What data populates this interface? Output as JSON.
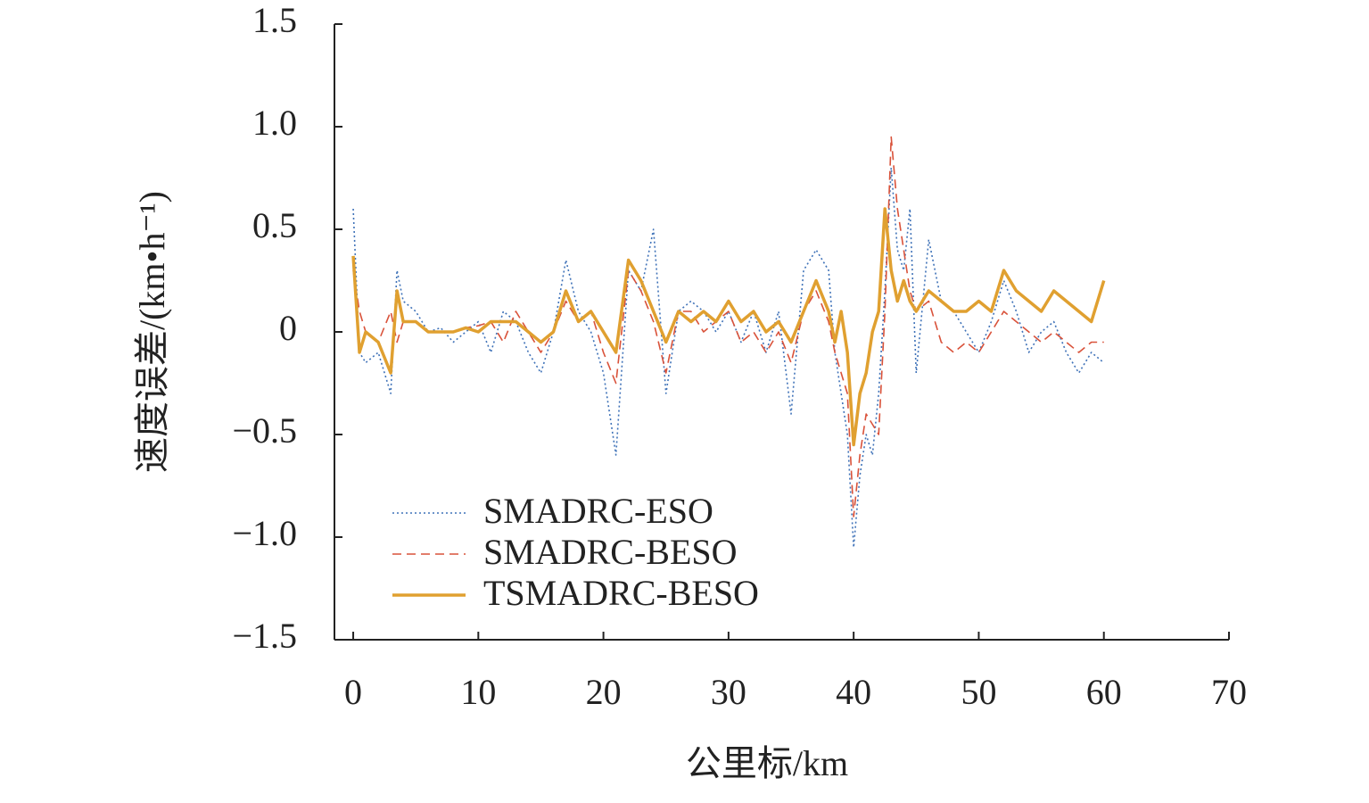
{
  "chart_data": {
    "type": "line",
    "xlabel": "公里标/km",
    "ylabel": "速度误差/(km•h⁻¹)",
    "x": [
      0,
      0.5,
      1,
      2,
      3,
      3.5,
      4,
      5,
      6,
      7,
      8,
      9,
      10,
      11,
      12,
      13,
      14,
      15,
      16,
      17,
      18,
      19,
      20,
      21,
      22,
      23,
      24,
      25,
      26,
      27,
      28,
      29,
      30,
      31,
      32,
      33,
      34,
      35,
      36,
      37,
      38,
      38.5,
      39,
      39.5,
      40,
      40.5,
      41,
      41.5,
      42,
      42.5,
      43,
      43.5,
      44,
      44.5,
      45,
      46,
      47,
      48,
      49,
      50,
      51,
      52,
      53,
      54,
      55,
      56,
      57,
      58,
      59,
      60
    ],
    "series": [
      {
        "name": "SMADRC-ESO",
        "color": "#3f72b8",
        "style": "dotted",
        "values": [
          0.6,
          -0.1,
          -0.15,
          -0.1,
          -0.3,
          0.3,
          0.15,
          0.1,
          0,
          0.02,
          -0.05,
          0,
          0.05,
          -0.1,
          0.1,
          0.05,
          -0.1,
          -0.2,
          0,
          0.35,
          0.1,
          0,
          -0.2,
          -0.6,
          0.3,
          0.2,
          0.5,
          -0.3,
          0.1,
          0.15,
          0.1,
          0,
          0.1,
          -0.05,
          0.1,
          -0.1,
          0.1,
          -0.4,
          0.3,
          0.4,
          0.3,
          -0.1,
          -0.3,
          -0.5,
          -1.05,
          -0.7,
          -0.5,
          -0.6,
          -0.3,
          0.2,
          0.8,
          0.4,
          0.3,
          0.6,
          -0.2,
          0.45,
          0.15,
          0.1,
          0,
          -0.1,
          0.05,
          0.25,
          0.1,
          -0.1,
          0,
          0.05,
          -0.1,
          -0.2,
          -0.1,
          -0.15
        ]
      },
      {
        "name": "SMADRC-BESO",
        "color": "#d9523a",
        "style": "dashed",
        "values": [
          0.3,
          0.1,
          0,
          -0.05,
          0.1,
          -0.05,
          0.05,
          0.05,
          0,
          0,
          0,
          0.02,
          0.03,
          0.05,
          -0.05,
          0.1,
          0,
          -0.1,
          0,
          0.15,
          0.05,
          0.1,
          -0.1,
          -0.25,
          0.3,
          0.2,
          0.05,
          -0.2,
          0.1,
          0.1,
          0,
          0.05,
          0.1,
          -0.05,
          0,
          -0.1,
          0,
          -0.15,
          0.1,
          0.2,
          0.05,
          -0.1,
          -0.2,
          -0.3,
          -0.9,
          -0.6,
          -0.4,
          -0.45,
          -0.5,
          0.1,
          0.95,
          0.6,
          0.4,
          0.2,
          0.1,
          0.15,
          -0.05,
          -0.1,
          -0.05,
          -0.1,
          0,
          0.1,
          0.05,
          0,
          -0.05,
          0,
          -0.05,
          -0.1,
          -0.05,
          -0.05
        ]
      },
      {
        "name": "TSMADRC-BESO",
        "color": "#e0a030",
        "style": "solid",
        "values": [
          0.37,
          -0.1,
          0,
          -0.05,
          -0.2,
          0.2,
          0.05,
          0.05,
          0,
          0,
          0,
          0.02,
          0,
          0.05,
          0.05,
          0.05,
          0,
          -0.05,
          0,
          0.2,
          0.05,
          0.1,
          0,
          -0.1,
          0.35,
          0.25,
          0.1,
          -0.05,
          0.1,
          0.05,
          0.1,
          0.05,
          0.15,
          0.05,
          0.1,
          0,
          0.05,
          -0.05,
          0.1,
          0.25,
          0.1,
          -0.05,
          0.1,
          -0.1,
          -0.55,
          -0.3,
          -0.2,
          0,
          0.1,
          0.6,
          0.3,
          0.15,
          0.25,
          0.15,
          0.1,
          0.2,
          0.15,
          0.1,
          0.1,
          0.15,
          0.1,
          0.3,
          0.2,
          0.15,
          0.1,
          0.2,
          0.15,
          0.1,
          0.05,
          0.25
        ]
      }
    ],
    "xlim": [
      -1.5,
      70
    ],
    "xticks": [
      0,
      10,
      20,
      30,
      40,
      50,
      60,
      70
    ],
    "ylim": [
      -1.5,
      1.5
    ],
    "yticks": [
      {
        "value": -1.5,
        "label": "−1.5"
      },
      {
        "value": -1,
        "label": "−1.0"
      },
      {
        "value": -0.5,
        "label": "−0.5"
      },
      0,
      0.5,
      {
        "value": 1,
        "label": "1.0"
      },
      1.5
    ]
  }
}
